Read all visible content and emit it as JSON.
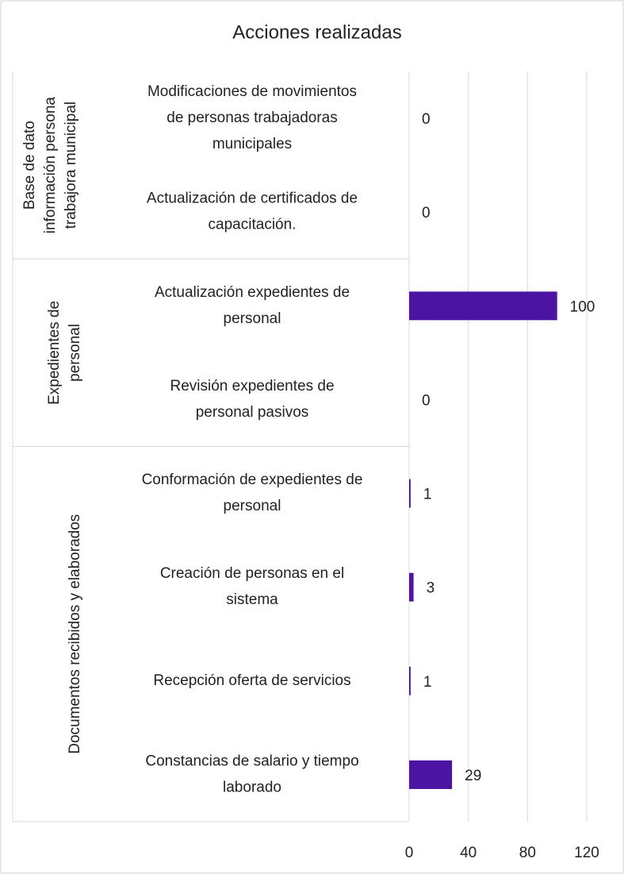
{
  "chart_data": {
    "type": "bar",
    "orientation": "horizontal",
    "title": "Acciones realizadas",
    "color": "#4b14a3",
    "groups": [
      {
        "name": "Base de dato\ninformación persona\ntrabajora municipal",
        "categories": [
          "Modificaciones  de movimientos\nde personas trabajadoras\nmunicipales",
          "Actualización de certificados de\ncapacitación."
        ],
        "values": [
          0,
          0
        ]
      },
      {
        "name": "Expedientes de\npersonal",
        "categories": [
          "Actualización expedientes de\npersonal",
          "Revisión expedientes de\npersonal pasivos"
        ],
        "values": [
          100,
          0
        ]
      },
      {
        "name": "Documentos recibidos y elaborados",
        "categories": [
          "Conformación de expedientes de\npersonal",
          "Creación de personas en el\nsistema",
          "Recepción oferta de servicios",
          "Constancias de salario y tiempo\nlaborado"
        ],
        "values": [
          1,
          3,
          1,
          29
        ]
      }
    ],
    "xlim": [
      0,
      120
    ],
    "xticks": [
      0,
      40,
      80,
      120
    ],
    "grid": true
  }
}
